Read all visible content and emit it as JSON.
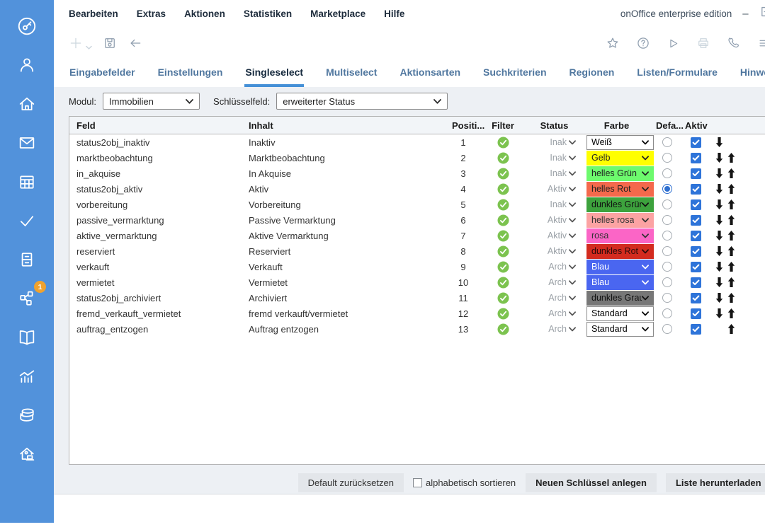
{
  "window": {
    "title": "onOffice enterprise edition",
    "minimize_label": "–"
  },
  "menu": {
    "items": [
      "Bearbeiten",
      "Extras",
      "Aktionen",
      "Statistiken",
      "Marketplace",
      "Hilfe"
    ]
  },
  "toolbar": {
    "icons_left": [
      "add",
      "save",
      "back"
    ],
    "icons_right": [
      "favorite",
      "help",
      "play",
      "print",
      "phone",
      "menu"
    ]
  },
  "tabs": [
    {
      "label": "Eingabefelder",
      "active": false
    },
    {
      "label": "Einstellungen",
      "active": false
    },
    {
      "label": "Singleselect",
      "active": true
    },
    {
      "label": "Multiselect",
      "active": false
    },
    {
      "label": "Aktionsarten",
      "active": false
    },
    {
      "label": "Suchkriterien",
      "active": false
    },
    {
      "label": "Regionen",
      "active": false
    },
    {
      "label": "Listen/Formulare",
      "active": false
    },
    {
      "label": "Hinweise",
      "active": false
    }
  ],
  "filters": {
    "modul_label": "Modul:",
    "modul_value": "Immobilien",
    "schluesselfeld_label": "Schlüsselfeld:",
    "schluesselfeld_value": "erweiterter Status"
  },
  "table": {
    "headers": [
      "Feld",
      "Inhalt",
      "Positi...",
      "Filter",
      "Status",
      "Farbe",
      "Defa...",
      "Aktiv",
      ""
    ],
    "rows": [
      {
        "feld": "status2obj_inaktiv",
        "inhalt": "Inaktiv",
        "position": "1",
        "filter": true,
        "status": "Inak",
        "farbe": "Weiß",
        "farbe_bg": "#ffffff",
        "farbe_fg": "#000000",
        "default": false,
        "aktiv": true,
        "move_down": true,
        "move_up": false
      },
      {
        "feld": "marktbeobachtung",
        "inhalt": "Marktbeobachtung",
        "position": "2",
        "filter": true,
        "status": "Inak",
        "farbe": "Gelb",
        "farbe_bg": "#ffff00",
        "farbe_fg": "#222222",
        "default": false,
        "aktiv": true,
        "move_down": true,
        "move_up": true
      },
      {
        "feld": "in_akquise",
        "inhalt": "In Akquise",
        "position": "3",
        "filter": true,
        "status": "Inak",
        "farbe": "helles Grün",
        "farbe_bg": "#6dfa6d",
        "farbe_fg": "#222222",
        "default": false,
        "aktiv": true,
        "move_down": true,
        "move_up": true
      },
      {
        "feld": "status2obj_aktiv",
        "inhalt": "Aktiv",
        "position": "4",
        "filter": true,
        "status": "Aktiv",
        "farbe": "helles Rot",
        "farbe_bg": "#f4694c",
        "farbe_fg": "#222222",
        "default": true,
        "aktiv": true,
        "move_down": true,
        "move_up": true
      },
      {
        "feld": "vorbereitung",
        "inhalt": "Vorbereitung",
        "position": "5",
        "filter": true,
        "status": "Inak",
        "farbe": "dunkles Grün",
        "farbe_bg": "#3da23d",
        "farbe_fg": "#111111",
        "default": false,
        "aktiv": true,
        "move_down": true,
        "move_up": true
      },
      {
        "feld": "passive_vermarktung",
        "inhalt": "Passive Vermarktung",
        "position": "6",
        "filter": true,
        "status": "Aktiv",
        "farbe": "helles rosa",
        "farbe_bg": "#fca3a3",
        "farbe_fg": "#333333",
        "default": false,
        "aktiv": true,
        "move_down": true,
        "move_up": true
      },
      {
        "feld": "aktive_vermarktung",
        "inhalt": "Aktive Vermarktung",
        "position": "7",
        "filter": true,
        "status": "Aktiv",
        "farbe": "rosa",
        "farbe_bg": "#fb65c6",
        "farbe_fg": "#333333",
        "default": false,
        "aktiv": true,
        "move_down": true,
        "move_up": true
      },
      {
        "feld": "reserviert",
        "inhalt": "Reserviert",
        "position": "8",
        "filter": true,
        "status": "Aktiv",
        "farbe": "dunkles Rot",
        "farbe_bg": "#d32b1f",
        "farbe_fg": "#2b0b0b",
        "default": false,
        "aktiv": true,
        "move_down": true,
        "move_up": true
      },
      {
        "feld": "verkauft",
        "inhalt": "Verkauft",
        "position": "9",
        "filter": true,
        "status": "Arch",
        "farbe": "Blau",
        "farbe_bg": "#4a66f0",
        "farbe_fg": "#ffffff",
        "default": false,
        "aktiv": true,
        "move_down": true,
        "move_up": true
      },
      {
        "feld": "vermietet",
        "inhalt": "Vermietet",
        "position": "10",
        "filter": true,
        "status": "Arch",
        "farbe": "Blau",
        "farbe_bg": "#4a66f0",
        "farbe_fg": "#ffffff",
        "default": false,
        "aktiv": true,
        "move_down": true,
        "move_up": true
      },
      {
        "feld": "status2obj_archiviert",
        "inhalt": "Archiviert",
        "position": "11",
        "filter": true,
        "status": "Arch",
        "farbe": "dunkles Grau",
        "farbe_bg": "#777777",
        "farbe_fg": "#111111",
        "default": false,
        "aktiv": true,
        "move_down": true,
        "move_up": true
      },
      {
        "feld": "fremd_verkauft_vermietet",
        "inhalt": "fremd verkauft/vermietet",
        "position": "12",
        "filter": true,
        "status": "Arch",
        "farbe": "Standard",
        "farbe_bg": "#ffffff",
        "farbe_fg": "#000000",
        "default": false,
        "aktiv": true,
        "move_down": true,
        "move_up": true
      },
      {
        "feld": "auftrag_entzogen",
        "inhalt": "Auftrag entzogen",
        "position": "13",
        "filter": true,
        "status": "Arch",
        "farbe": "Standard",
        "farbe_bg": "#ffffff",
        "farbe_fg": "#000000",
        "default": false,
        "aktiv": true,
        "move_down": false,
        "move_up": true
      }
    ]
  },
  "footer": {
    "reset_label": "Default zurücksetzen",
    "sort_label": "alphabetisch sortieren",
    "sort_checked": false,
    "new_key_label": "Neuen Schlüssel anlegen",
    "download_label": "Liste herunterladen"
  },
  "sidebar": {
    "badge_count": "1"
  },
  "colors": {
    "sidebar_blue": "#5292db",
    "accent_blue": "#4590d7",
    "badge_orange": "#f0a22e",
    "filter_green": "#7cc34f",
    "checkbox_blue": "#2e74d9"
  }
}
